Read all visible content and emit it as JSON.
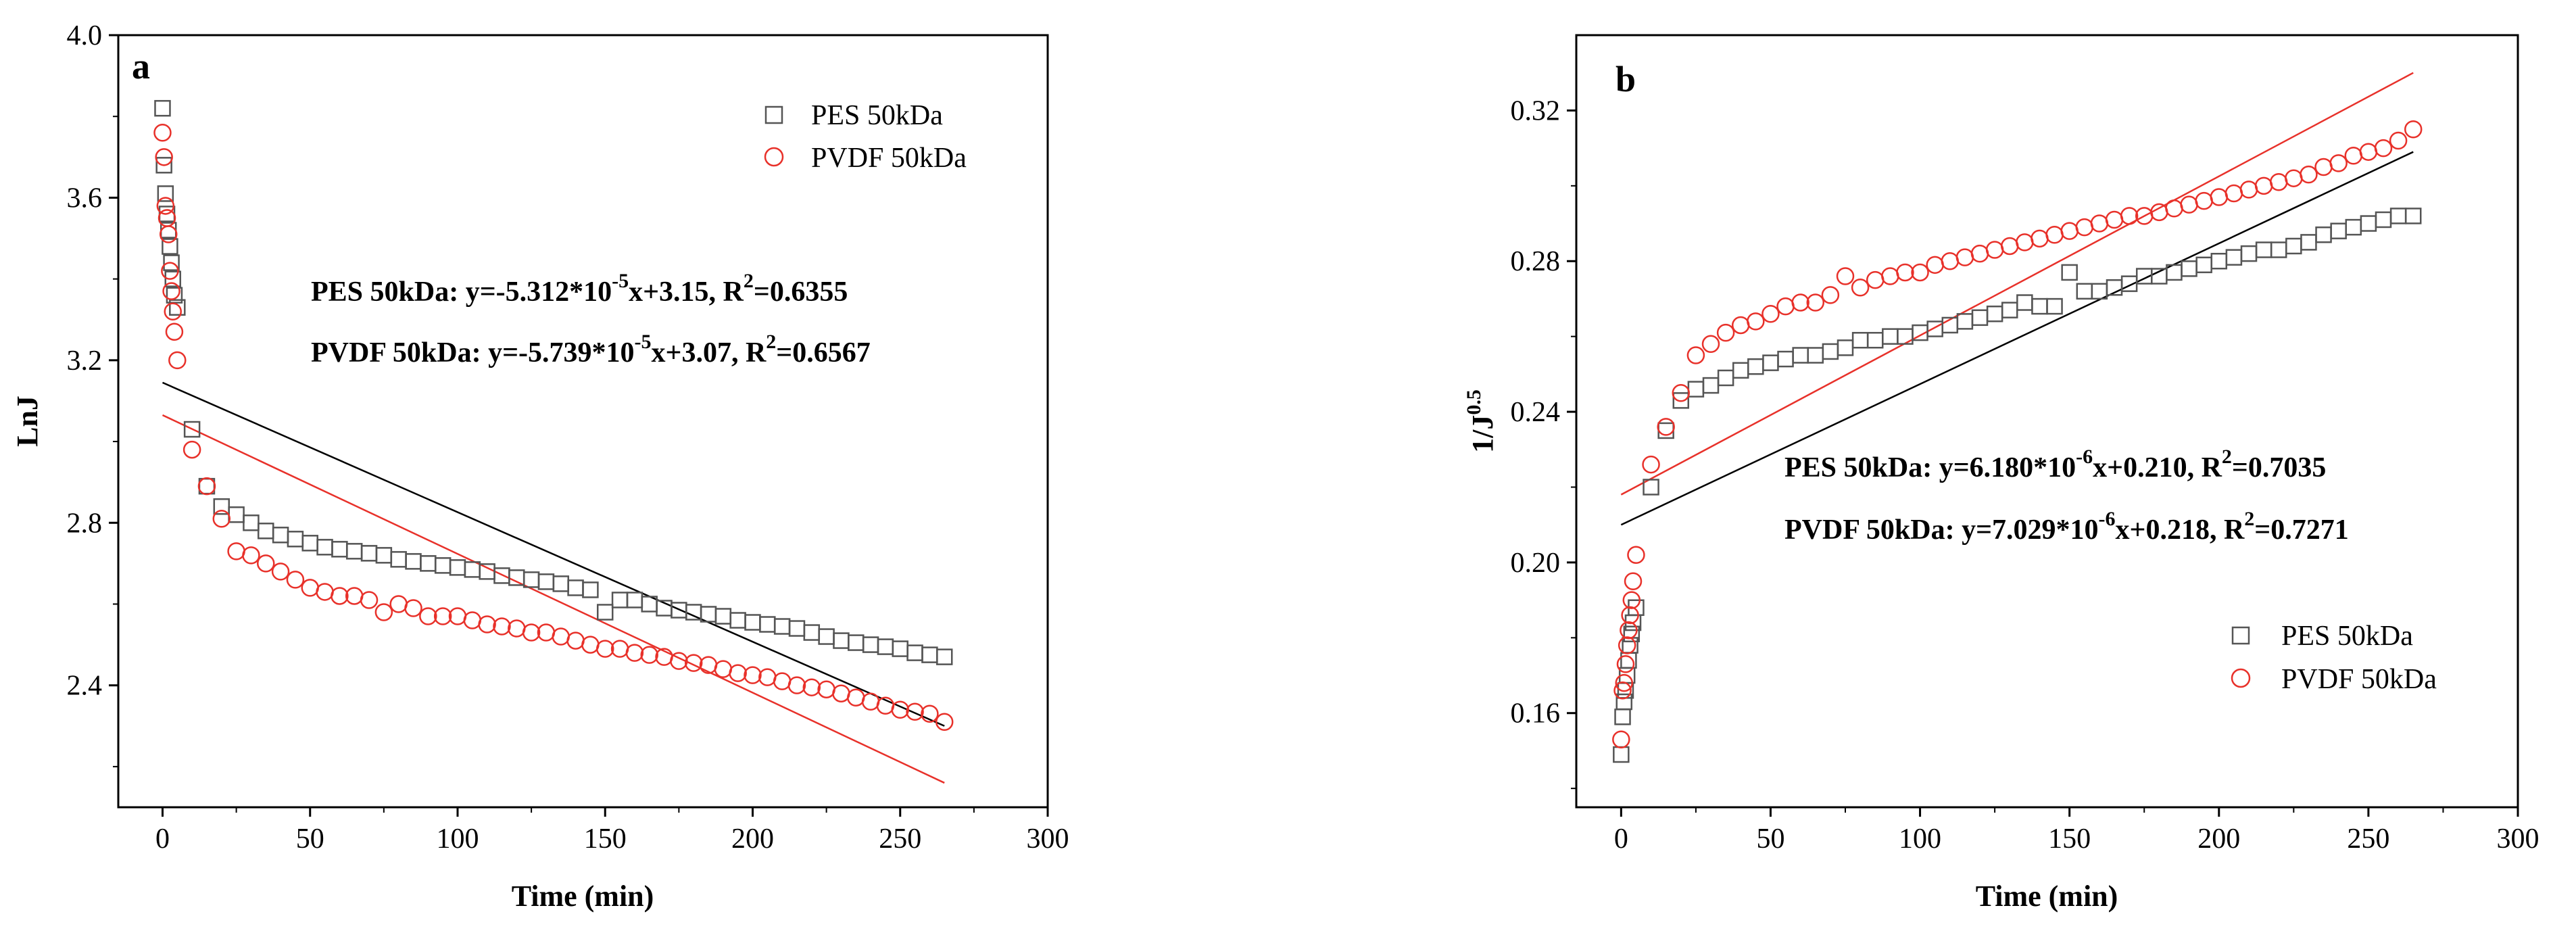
{
  "chart_data": [
    {
      "type": "scatter",
      "panel": "a",
      "xlabel": "Time (min)",
      "ylabel": "LnJ",
      "xlim": [
        -15,
        300
      ],
      "ylim": [
        2.1,
        4.0
      ],
      "xticks": [
        0,
        50,
        100,
        150,
        200,
        250,
        300
      ],
      "yticks": [
        2.4,
        2.8,
        3.2,
        3.6,
        4.0
      ],
      "xtick_labels": [
        "0",
        "50",
        "100",
        "150",
        "200",
        "250",
        "300"
      ],
      "ytick_labels": [
        "2.4",
        "2.8",
        "3.2",
        "3.6",
        "4.0"
      ],
      "legend_position": "top-right",
      "series": [
        {
          "name": "PES 50kDa",
          "marker": "square",
          "color": "#555555",
          "x": [
            0,
            0.5,
            1,
            1.5,
            2,
            2.5,
            3,
            3.5,
            4,
            5,
            10,
            15,
            20,
            25,
            30,
            35,
            40,
            45,
            50,
            55,
            60,
            65,
            70,
            75,
            80,
            85,
            90,
            95,
            100,
            105,
            110,
            115,
            120,
            125,
            130,
            135,
            140,
            145,
            150,
            155,
            160,
            165,
            170,
            175,
            180,
            185,
            190,
            195,
            200,
            205,
            210,
            215,
            220,
            225,
            230,
            235,
            240,
            245,
            250,
            255,
            260,
            265
          ],
          "y": [
            3.82,
            3.68,
            3.61,
            3.56,
            3.52,
            3.48,
            3.44,
            3.4,
            3.36,
            3.33,
            3.03,
            2.89,
            2.84,
            2.82,
            2.8,
            2.78,
            2.77,
            2.76,
            2.75,
            2.74,
            2.735,
            2.73,
            2.725,
            2.72,
            2.71,
            2.705,
            2.7,
            2.695,
            2.69,
            2.685,
            2.68,
            2.67,
            2.665,
            2.66,
            2.655,
            2.65,
            2.64,
            2.635,
            2.58,
            2.61,
            2.61,
            2.6,
            2.59,
            2.585,
            2.58,
            2.575,
            2.57,
            2.56,
            2.555,
            2.55,
            2.545,
            2.54,
            2.53,
            2.52,
            2.51,
            2.505,
            2.5,
            2.495,
            2.49,
            2.48,
            2.475,
            2.47
          ]
        },
        {
          "name": "PVDF 50kDa",
          "marker": "circle",
          "color": "#e8312a",
          "x": [
            0,
            0.5,
            1,
            1.5,
            2,
            2.5,
            3,
            3.5,
            4,
            5,
            10,
            15,
            20,
            25,
            30,
            35,
            40,
            45,
            50,
            55,
            60,
            65,
            70,
            75,
            80,
            85,
            90,
            95,
            100,
            105,
            110,
            115,
            120,
            125,
            130,
            135,
            140,
            145,
            150,
            155,
            160,
            165,
            170,
            175,
            180,
            185,
            190,
            195,
            200,
            205,
            210,
            215,
            220,
            225,
            230,
            235,
            240,
            245,
            250,
            255,
            260,
            265
          ],
          "y": [
            3.76,
            3.7,
            3.58,
            3.55,
            3.51,
            3.42,
            3.37,
            3.32,
            3.27,
            3.2,
            2.98,
            2.89,
            2.81,
            2.73,
            2.72,
            2.7,
            2.68,
            2.66,
            2.64,
            2.63,
            2.62,
            2.62,
            2.61,
            2.58,
            2.6,
            2.59,
            2.57,
            2.57,
            2.57,
            2.56,
            2.55,
            2.545,
            2.54,
            2.53,
            2.53,
            2.52,
            2.51,
            2.5,
            2.49,
            2.49,
            2.48,
            2.475,
            2.47,
            2.46,
            2.455,
            2.45,
            2.44,
            2.43,
            2.425,
            2.42,
            2.41,
            2.4,
            2.395,
            2.39,
            2.38,
            2.37,
            2.36,
            2.35,
            2.34,
            2.335,
            2.33,
            2.31
          ]
        }
      ],
      "fit_lines": [
        {
          "name": "PES 50kDa fit",
          "color": "#000000",
          "x": [
            0,
            265
          ],
          "y": [
            3.145,
            2.3
          ]
        },
        {
          "name": "PVDF 50kDa fit",
          "color": "#e8312a",
          "x": [
            0,
            265
          ],
          "y": [
            3.065,
            2.16
          ]
        }
      ],
      "equations": [
        {
          "label": "PES 50kDa: y=-5.312*10",
          "exp": "-5",
          "mid": "x+3.15, R",
          "sup": "2",
          "tail": "=0.6355"
        },
        {
          "label": "PVDF 50kDa: y=-5.739*10",
          "exp": "-5",
          "mid": "x+3.07, R",
          "sup": "2",
          "tail": "=0.6567"
        }
      ]
    },
    {
      "type": "scatter",
      "panel": "b",
      "xlabel": "Time (min)",
      "ylabel": "1/J",
      "ylabel_sup": "0.5",
      "xlim": [
        -15,
        300
      ],
      "ylim": [
        0.135,
        0.34
      ],
      "xticks": [
        0,
        50,
        100,
        150,
        200,
        250,
        300
      ],
      "yticks": [
        0.16,
        0.2,
        0.24,
        0.28,
        0.32
      ],
      "xtick_labels": [
        "0",
        "50",
        "100",
        "150",
        "200",
        "250",
        "300"
      ],
      "ytick_labels": [
        "0.16",
        "0.20",
        "0.24",
        "0.28",
        "0.32"
      ],
      "legend_position": "bottom-right",
      "series": [
        {
          "name": "PES 50kDa",
          "marker": "square",
          "color": "#555555",
          "x": [
            0,
            0.5,
            1,
            1.5,
            2,
            2.5,
            3,
            3.5,
            4,
            5,
            10,
            15,
            20,
            25,
            30,
            35,
            40,
            45,
            50,
            55,
            60,
            65,
            70,
            75,
            80,
            85,
            90,
            95,
            100,
            105,
            110,
            115,
            120,
            125,
            130,
            135,
            140,
            145,
            150,
            155,
            160,
            165,
            170,
            175,
            180,
            185,
            190,
            195,
            200,
            205,
            210,
            215,
            220,
            225,
            230,
            235,
            240,
            245,
            250,
            255,
            260,
            265
          ],
          "y": [
            0.149,
            0.159,
            0.163,
            0.166,
            0.17,
            0.174,
            0.178,
            0.181,
            0.184,
            0.188,
            0.22,
            0.235,
            0.243,
            0.246,
            0.247,
            0.249,
            0.251,
            0.252,
            0.253,
            0.254,
            0.255,
            0.255,
            0.256,
            0.257,
            0.259,
            0.259,
            0.26,
            0.26,
            0.261,
            0.262,
            0.263,
            0.264,
            0.265,
            0.266,
            0.267,
            0.269,
            0.268,
            0.268,
            0.277,
            0.272,
            0.272,
            0.273,
            0.274,
            0.276,
            0.276,
            0.277,
            0.278,
            0.279,
            0.28,
            0.281,
            0.282,
            0.283,
            0.283,
            0.284,
            0.285,
            0.287,
            0.288,
            0.289,
            0.29,
            0.291,
            0.292,
            0.292
          ]
        },
        {
          "name": "PVDF 50kDa",
          "marker": "circle",
          "color": "#e8312a",
          "x": [
            0,
            0.5,
            1,
            1.5,
            2,
            2.5,
            3,
            3.5,
            4,
            5,
            10,
            15,
            20,
            25,
            30,
            35,
            40,
            45,
            50,
            55,
            60,
            65,
            70,
            75,
            80,
            85,
            90,
            95,
            100,
            105,
            110,
            115,
            120,
            125,
            130,
            135,
            140,
            145,
            150,
            155,
            160,
            165,
            170,
            175,
            180,
            185,
            190,
            195,
            200,
            205,
            210,
            215,
            220,
            225,
            230,
            235,
            240,
            245,
            250,
            255,
            260,
            265
          ],
          "y": [
            0.153,
            0.166,
            0.168,
            0.173,
            0.178,
            0.182,
            0.186,
            0.19,
            0.195,
            0.202,
            0.226,
            0.236,
            0.245,
            0.255,
            0.258,
            0.261,
            0.263,
            0.264,
            0.266,
            0.268,
            0.269,
            0.269,
            0.271,
            0.276,
            0.273,
            0.275,
            0.276,
            0.277,
            0.277,
            0.279,
            0.28,
            0.281,
            0.282,
            0.283,
            0.284,
            0.285,
            0.286,
            0.287,
            0.288,
            0.289,
            0.29,
            0.291,
            0.292,
            0.292,
            0.293,
            0.294,
            0.295,
            0.296,
            0.297,
            0.298,
            0.299,
            0.3,
            0.301,
            0.302,
            0.303,
            0.305,
            0.306,
            0.308,
            0.309,
            0.31,
            0.312,
            0.315
          ]
        }
      ],
      "fit_lines": [
        {
          "name": "PES 50kDa fit",
          "color": "#000000",
          "x": [
            0,
            265
          ],
          "y": [
            0.21,
            0.309
          ]
        },
        {
          "name": "PVDF 50kDa fit",
          "color": "#e8312a",
          "x": [
            0,
            265
          ],
          "y": [
            0.218,
            0.33
          ]
        }
      ],
      "equations": [
        {
          "label": "PES 50kDa: y=6.180*10",
          "exp": "-6",
          "mid": "x+0.210, R",
          "sup": "2",
          "tail": "=0.7035"
        },
        {
          "label": "PVDF 50kDa: y=7.029*10",
          "exp": "-6",
          "mid": "x+0.218, R",
          "sup": "2",
          "tail": "=0.7271"
        }
      ]
    }
  ]
}
